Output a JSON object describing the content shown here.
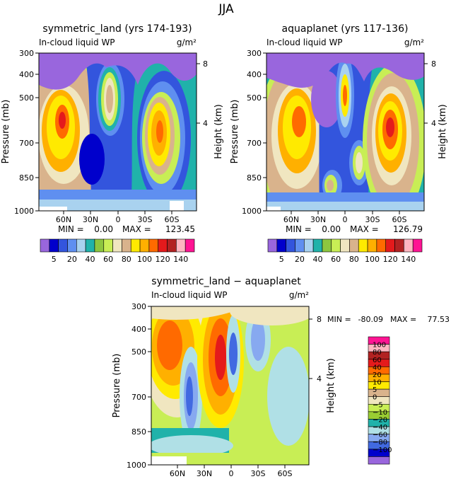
{
  "page": {
    "title": "JJA"
  },
  "palette": {
    "abs": [
      "#9966dd",
      "#0000cc",
      "#3355dd",
      "#5f8ff0",
      "#a9d2ef",
      "#20b2aa",
      "#8dc63f",
      "#c8ee55",
      "#f0e6c0",
      "#d9b38c",
      "#ffea00",
      "#ffb000",
      "#ff6a00",
      "#e41a1c",
      "#b22222",
      "#ffb6c1",
      "#ff1493"
    ],
    "diff": [
      "#9966dd",
      "#0000cc",
      "#4169e1",
      "#87a9f0",
      "#b0e0e6",
      "#20b2aa",
      "#9acd32",
      "#c8ee55",
      "#f0e6c0",
      "#d9b38c",
      "#ffea00",
      "#ffb000",
      "#ff6a00",
      "#e41a1c",
      "#b22222",
      "#ffb6c1",
      "#ff1493"
    ]
  },
  "chart_data": [
    {
      "type": "heatmap",
      "title": "symmetric_land (yrs 174-193)",
      "left_label": "In-cloud liquid WP",
      "right_label": "g/m²",
      "ylabel": "Pressure (mb)",
      "y2label": "Height (km)",
      "y_ticks": [
        "300",
        "400",
        "500",
        "700",
        "850",
        "1000"
      ],
      "y2_ticks": [
        "8",
        "4"
      ],
      "x_ticks": [
        "60N",
        "30N",
        "0",
        "30S",
        "60S"
      ],
      "stats": {
        "min_label": "MIN =",
        "min": "0.00",
        "max_label": "MAX =",
        "max": "123.45"
      },
      "colorbar_labels": [
        "5",
        "20",
        "40",
        "60",
        "80",
        "100",
        "120",
        "140"
      ]
    },
    {
      "type": "heatmap",
      "title": "aquaplanet (yrs 117-136)",
      "left_label": "In-cloud liquid WP",
      "right_label": "g/m²",
      "ylabel": "Pressure (mb)",
      "y2label": "Height (km)",
      "y_ticks": [
        "300",
        "400",
        "500",
        "700",
        "850",
        "1000"
      ],
      "y2_ticks": [
        "8",
        "4"
      ],
      "x_ticks": [
        "60N",
        "30N",
        "0",
        "30S",
        "60S"
      ],
      "stats": {
        "min_label": "MIN =",
        "min": "0.00",
        "max_label": "MAX =",
        "max": "126.79"
      },
      "colorbar_labels": [
        "5",
        "20",
        "40",
        "60",
        "80",
        "100",
        "120",
        "140"
      ]
    },
    {
      "type": "heatmap",
      "title": "symmetric_land − aquaplanet",
      "left_label": "In-cloud liquid WP",
      "right_label": "g/m²",
      "ylabel": "Pressure (mb)",
      "y2label": "Height (km)",
      "y_ticks": [
        "300",
        "400",
        "500",
        "700",
        "850",
        "1000"
      ],
      "y2_ticks": [
        "8",
        "4"
      ],
      "x_ticks": [
        "60N",
        "30N",
        "0",
        "30S",
        "60S"
      ],
      "stats": {
        "min_label": "MIN =",
        "min": "-80.09",
        "max_label": "MAX =",
        "max": "77.53"
      },
      "colorbar_labels": [
        "100",
        "80",
        "60",
        "40",
        "20",
        "10",
        "5",
        "0",
        "−5",
        "−10",
        "−20",
        "−40",
        "−60",
        "−80",
        "−100"
      ]
    }
  ]
}
